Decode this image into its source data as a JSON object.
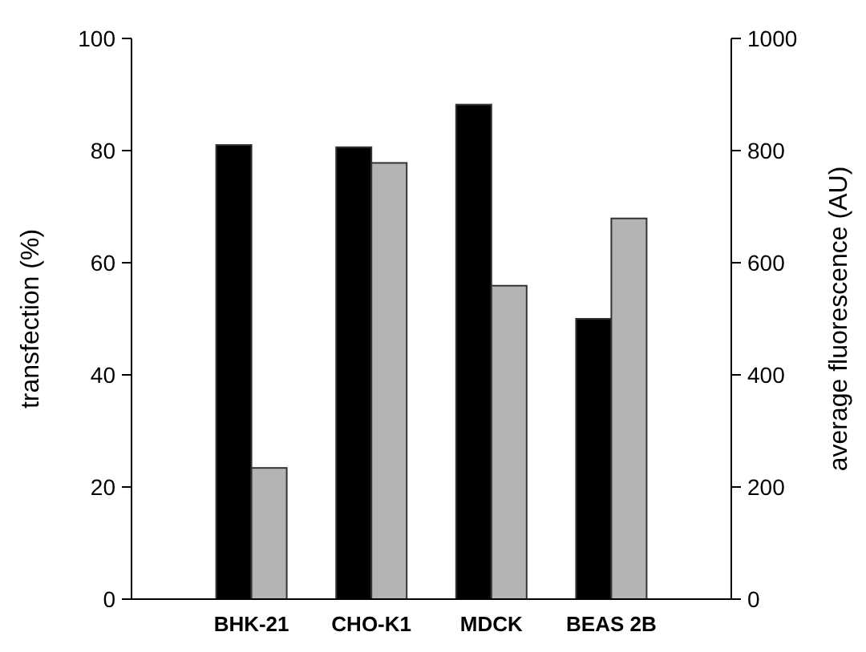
{
  "chart_data": {
    "type": "bar",
    "categories": [
      "BHK-21",
      "CHO-K1",
      "MDCK",
      "BEAS 2B"
    ],
    "series": [
      {
        "color": "#000000",
        "values": [
          81.0,
          80.6,
          88.2,
          50.0
        ]
      },
      {
        "color": "#b4b4b4",
        "values": [
          234,
          778,
          559,
          679
        ],
        "axis": "y2"
      }
    ],
    "ylabel": "transfection (%)",
    "y2label": "average fluorescence (AU)",
    "ylim": [
      0,
      100
    ],
    "yticks": [
      0,
      20,
      40,
      60,
      80,
      100
    ],
    "y2lim": [
      0,
      1000
    ],
    "y2ticks": [
      0,
      200,
      400,
      600,
      800,
      1000
    ],
    "grid": false
  }
}
